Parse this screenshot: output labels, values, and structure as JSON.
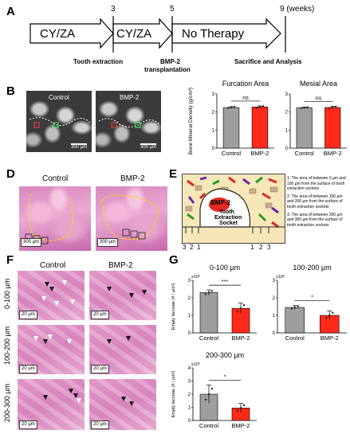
{
  "panels": {
    "A": {
      "letter": "A",
      "ticks": [
        "3",
        "5",
        "9 (weeks)"
      ],
      "stage1": "CY/ZA",
      "stage2": "CY/ZA",
      "stage3": "No Therapy",
      "event1": "Tooth extraction",
      "event2a": "BMP-2",
      "event2b": "transplantation",
      "event3": "Sacrifice and Analysis"
    },
    "B": {
      "letter": "B",
      "img1_label": "Control",
      "img2_label": "BMP-2",
      "scale": "300 µm"
    },
    "D": {
      "letter": "D",
      "img1_label": "Control",
      "img2_label": "BMP-2",
      "scale": "300 µm"
    },
    "E": {
      "letter": "E",
      "bubble": "BMP-2",
      "socket_line1": "Tooth",
      "socket_line2": "Extraction",
      "socket_line3": "Socket",
      "zone_numbers_left": [
        "3",
        "2",
        "1"
      ],
      "zone_numbers_right": [
        "1",
        "2",
        "3"
      ],
      "legend": [
        "1. The area of between 0 µm and 100 µm from the surface of tooth extraction sockets",
        "2. The area of between 100 µm and 200 µm from the surface of tooth extraction sockets",
        "3. The area of between 200 µm and 300 µm from the surface of tooth extraction sockets"
      ]
    },
    "F": {
      "letter": "F",
      "col1": "Control",
      "col2": "BMP-2",
      "rows": [
        "0-100 µm",
        "100-200 µm",
        "200-300 µm"
      ],
      "scale": "20 µm"
    },
    "G": {
      "letter": "G"
    }
  },
  "chart_data": [
    {
      "type": "bar",
      "title": "Furcation Area",
      "ylabel": "Bone Mineral Density (g/cm³)",
      "categories": [
        "Control",
        "BMP-2"
      ],
      "values": [
        2.25,
        2.28
      ],
      "errors": [
        0.05,
        0.06
      ],
      "ylim": [
        0,
        3
      ],
      "yticks": [
        "0",
        "1",
        "2",
        "3"
      ],
      "significance": "ns",
      "colors": [
        "#9e9e9e",
        "#ff2a1a"
      ]
    },
    {
      "type": "bar",
      "title": "Mesial Area",
      "categories": [
        "Control",
        "BMP-2"
      ],
      "values": [
        2.24,
        2.25
      ],
      "errors": [
        0.04,
        0.07
      ],
      "ylim": [
        0,
        3
      ],
      "yticks": [
        "0",
        "1",
        "2",
        "3"
      ],
      "significance": "ns",
      "colors": [
        "#9e9e9e",
        "#ff2a1a"
      ]
    },
    {
      "type": "bar",
      "title": "0-100 µm",
      "ylabel": "Empty lacunae (# / µm²)",
      "yscale_label": "x10²",
      "categories": [
        "Control",
        "BMP-2"
      ],
      "values": [
        2.3,
        1.4
      ],
      "errors": [
        0.15,
        0.3
      ],
      "ylim": [
        0,
        3
      ],
      "yticks": [
        "0",
        "1",
        "2",
        "3"
      ],
      "significance": "***",
      "colors": [
        "#9e9e9e",
        "#ff2a1a"
      ]
    },
    {
      "type": "bar",
      "title": "100-200 µm",
      "yscale_label": "x10²",
      "categories": [
        "Control",
        "BMP-2"
      ],
      "values": [
        1.45,
        1.0
      ],
      "errors": [
        0.12,
        0.25
      ],
      "ylim": [
        0,
        3
      ],
      "yticks": [
        "0",
        "1",
        "2",
        "3"
      ],
      "significance": "*",
      "colors": [
        "#9e9e9e",
        "#ff2a1a"
      ]
    },
    {
      "type": "bar",
      "title": "200-300 µm",
      "ylabel": "Empty lacunae (# / µm²)",
      "yscale_label": "x10²",
      "categories": [
        "Control",
        "BMP-2"
      ],
      "values": [
        2.0,
        0.95
      ],
      "errors": [
        0.7,
        0.35
      ],
      "ylim": [
        0,
        4
      ],
      "yticks": [
        "0",
        "1",
        "2",
        "3",
        "4"
      ],
      "significance": "*",
      "colors": [
        "#9e9e9e",
        "#ff2a1a"
      ]
    }
  ]
}
